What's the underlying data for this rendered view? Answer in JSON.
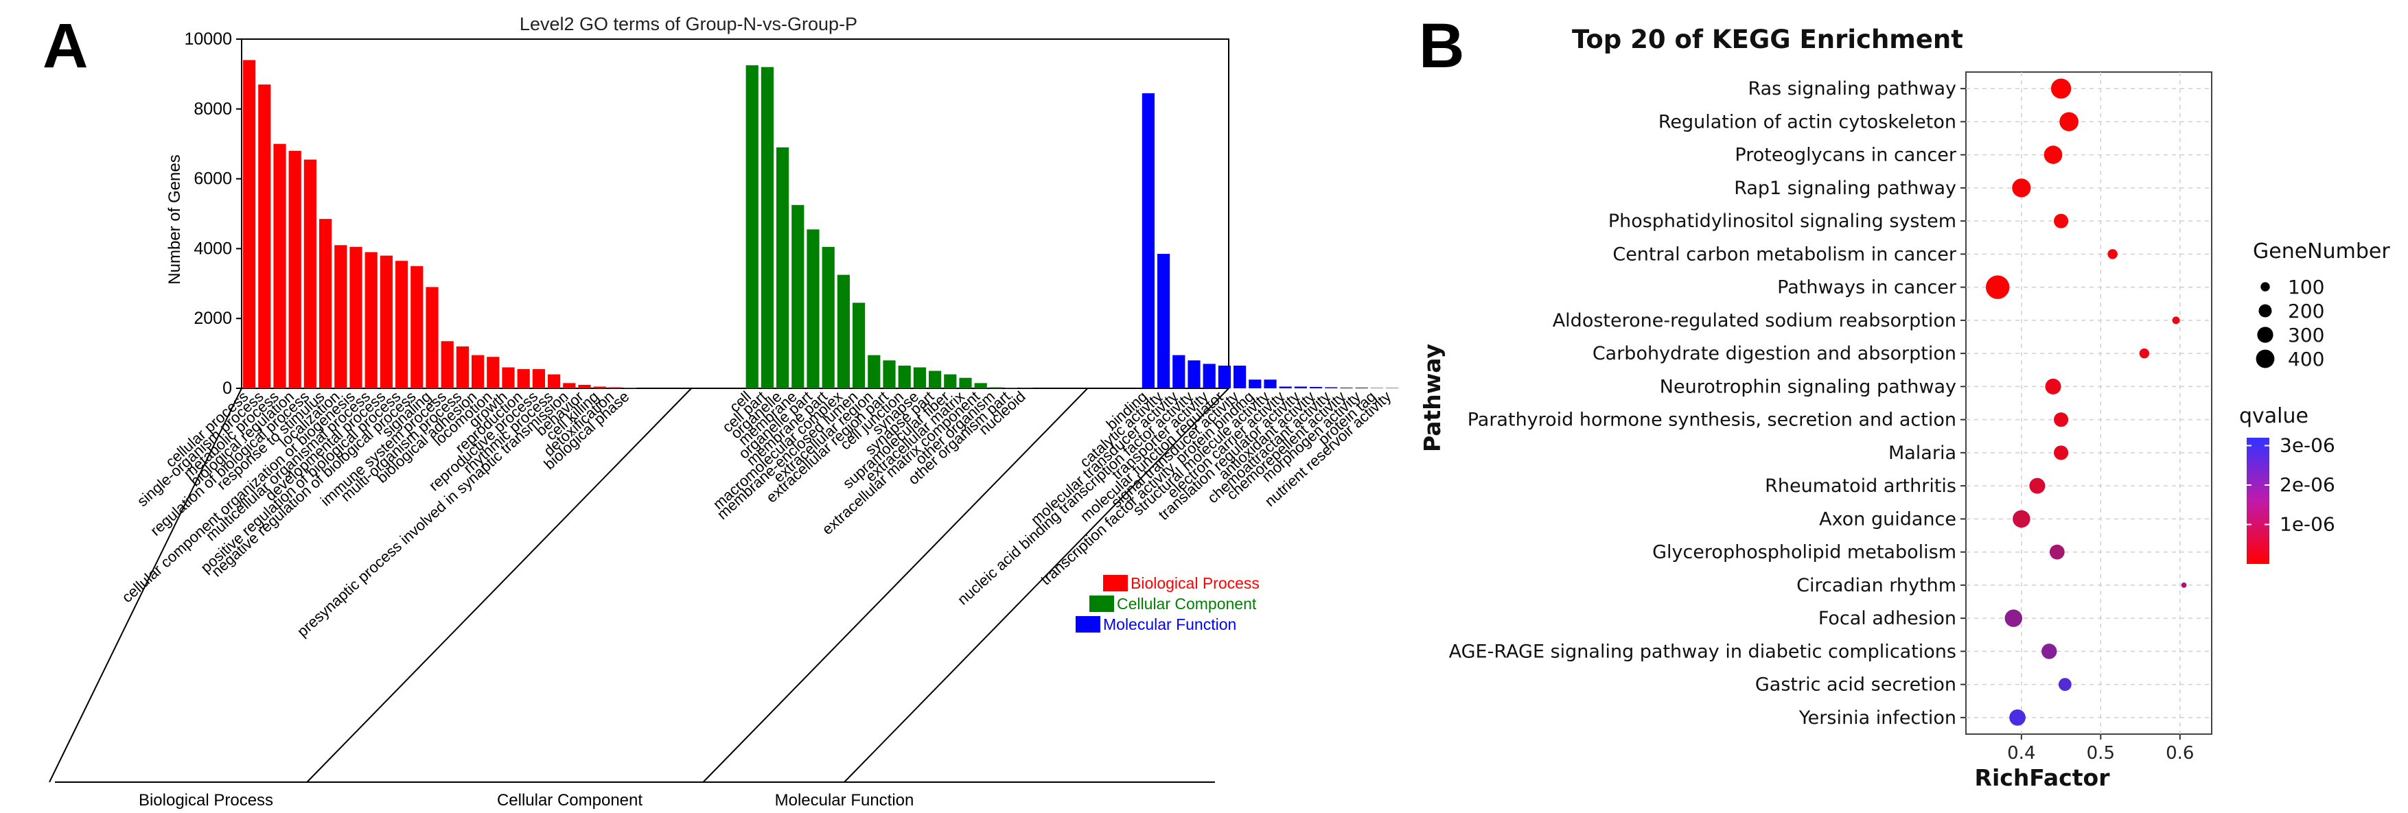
{
  "panelA_label": "A",
  "panelB_label": "B",
  "chart_data": [
    {
      "type": "bar",
      "title": "Level2 GO terms of Group-N-vs-Group-P",
      "ylabel": "Number of Genes",
      "xlabel": "",
      "ylim": [
        0,
        10000
      ],
      "yticks": [
        0,
        2000,
        4000,
        6000,
        8000,
        10000
      ],
      "legend_position": "right",
      "groups": [
        {
          "name": "Biological Process",
          "color": "#ff0000",
          "categories": [
            "cellular process",
            "single-organism process",
            "metabolic process",
            "biological regulation",
            "regulation of biological process",
            "response to stimulus",
            "localization",
            "cellular component organization or biogenesis",
            "multicellular organismal process",
            "developmental process",
            "positive regulation of biological process",
            "negative regulation of biological process",
            "signaling",
            "immune system process",
            "multi-organism process",
            "biological adhesion",
            "locomotion",
            "growth",
            "reproduction",
            "reproductive process",
            "rhythmic process",
            "presynaptic process involved in synaptic transmission",
            "behavior",
            "cell killing",
            "detoxification",
            "biological phase"
          ],
          "values": [
            9400,
            8700,
            7000,
            6800,
            6550,
            4850,
            4100,
            4050,
            3900,
            3800,
            3650,
            3500,
            2900,
            1350,
            1200,
            950,
            900,
            600,
            550,
            550,
            400,
            150,
            100,
            50,
            30,
            20
          ]
        },
        {
          "name": "Cellular Component",
          "color": "#008000",
          "categories": [
            "cell",
            "cell part",
            "organelle",
            "membrane",
            "organelle part",
            "membrane part",
            "macromolecular complex",
            "membrane-enclosed lumen",
            "extracellular region",
            "extracellular region part",
            "cell junction",
            "synapse",
            "synapse part",
            "supramolecular fiber",
            "extracellular matrix",
            "extracellular matrix component",
            "other organism",
            "other organism part",
            "nucleoid"
          ],
          "values": [
            9250,
            9200,
            6900,
            5250,
            4550,
            4050,
            3250,
            2450,
            950,
            800,
            650,
            600,
            500,
            400,
            300,
            150,
            30,
            20,
            10
          ]
        },
        {
          "name": "Molecular Function",
          "color": "#0000ff",
          "categories": [
            "binding",
            "catalytic activity",
            "molecular transducer activity",
            "nucleic acid binding transcription factor activity",
            "transporter activity",
            "molecular function regulator",
            "signal transducer activity",
            "transcription factor activity, protein binding",
            "structural molecule activity",
            "electron carrier activity",
            "translation regulator activity",
            "antioxidant activity",
            "chemoattractant activity",
            "chemorepellent activity",
            "morphogen activity",
            "protein tag",
            "nutrient reservoir activity"
          ],
          "values": [
            8450,
            3850,
            950,
            800,
            700,
            650,
            650,
            250,
            250,
            50,
            50,
            40,
            30,
            20,
            20,
            10,
            10
          ]
        }
      ]
    },
    {
      "type": "scatter",
      "title": "Top 20 of KEGG Enrichment",
      "xlabel": "RichFactor",
      "ylabel": "Pathway",
      "xlim": [
        0.33,
        0.64
      ],
      "xticks": [
        0.4,
        0.5,
        0.6
      ],
      "xtick_labels": [
        "0.4",
        "0.5",
        "0.6"
      ],
      "pathways": [
        "Ras signaling pathway",
        "Regulation of actin cytoskeleton",
        "Proteoglycans in cancer",
        "Rap1 signaling pathway",
        "Phosphatidylinositol signaling system",
        "Central carbon metabolism in cancer",
        "Pathways in cancer",
        "Aldosterone-regulated sodium reabsorption",
        "Carbohydrate digestion and absorption",
        "Neurotrophin signaling pathway",
        "Parathyroid hormone synthesis, secretion and action",
        "Malaria",
        "Rheumatoid arthritis",
        "Axon guidance",
        "Glycerophospholipid metabolism",
        "Circadian rhythm",
        "Focal adhesion",
        "AGE-RAGE signaling pathway in diabetic complications",
        "Gastric acid secretion",
        "Yersinia infection"
      ],
      "rich_factor": [
        0.45,
        0.46,
        0.44,
        0.4,
        0.45,
        0.515,
        0.37,
        0.595,
        0.555,
        0.44,
        0.45,
        0.45,
        0.42,
        0.4,
        0.445,
        0.605,
        0.39,
        0.435,
        0.455,
        0.395
      ],
      "gene_number": [
        290,
        260,
        240,
        250,
        150,
        70,
        400,
        40,
        70,
        180,
        150,
        150,
        180,
        220,
        160,
        20,
        220,
        170,
        120,
        190
      ],
      "qvalue": [
        3e-08,
        4e-08,
        5e-08,
        6e-08,
        1e-07,
        1.5e-07,
        2e-08,
        2e-07,
        2.5e-07,
        3e-07,
        3.5e-07,
        4e-07,
        6e-07,
        8e-07,
        1.4e-06,
        1.3e-06,
        1.8e-06,
        1.9e-06,
        2.7e-06,
        2.85e-06
      ],
      "legend_size": {
        "title": "GeneNumber",
        "values": [
          100,
          200,
          300,
          400
        ],
        "labels": [
          "100",
          "200",
          "300",
          "400"
        ]
      },
      "legend_color": {
        "title": "qvalue",
        "labels": [
          "3e-06",
          "2e-06",
          "1e-06"
        ],
        "values": [
          3e-06,
          2e-06,
          1e-06
        ],
        "min": 0,
        "max": 3.2e-06,
        "low_color": "#ff0000",
        "high_color": "#3333ff"
      }
    }
  ]
}
